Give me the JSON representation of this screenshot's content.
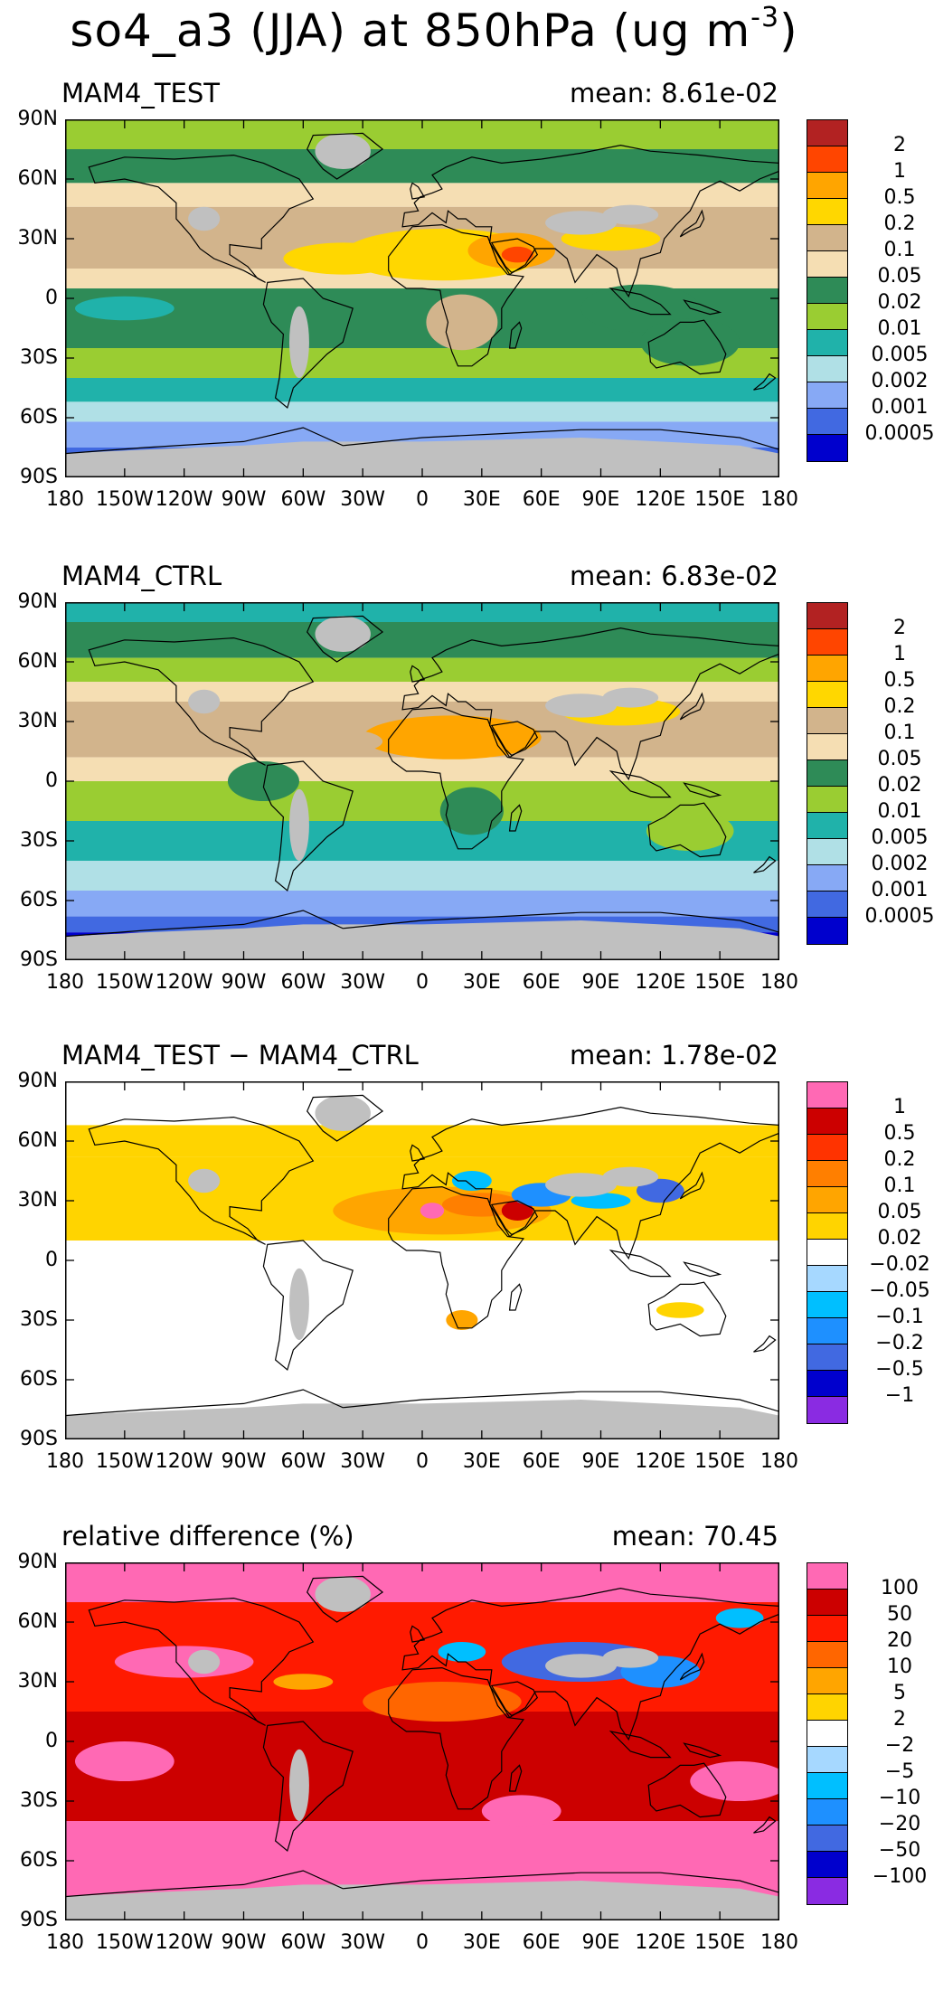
{
  "title": {
    "text": "so4_a3 (JJA) at 850hPa (ug m",
    "sup": "-3",
    "close": ")"
  },
  "colors": {
    "land_gray": "#c0c0c0",
    "coast": "#000000"
  },
  "x_ticks": [
    "180",
    "150W",
    "120W",
    "90W",
    "60W",
    "30W",
    "0",
    "30E",
    "60E",
    "90E",
    "120E",
    "150E",
    "180"
  ],
  "y_ticks": [
    "90N",
    "60N",
    "30N",
    "0",
    "30S",
    "60S",
    "90S"
  ],
  "panels": [
    {
      "label": "MAM4_TEST",
      "mean": "mean: 8.61e-02",
      "palette": [
        "#b22222",
        "#ff4500",
        "#ffa500",
        "#ffd700",
        "#d2b48c",
        "#f5deb3",
        "#2e8b57",
        "#9acd32",
        "#20b2aa",
        "#b0e0e6",
        "#87a9f5",
        "#4169e1",
        "#0000cd"
      ],
      "levels": [
        "2",
        "1",
        "0.5",
        "0.2",
        "0.1",
        "0.05",
        "0.02",
        "0.01",
        "0.005",
        "0.002",
        "0.001",
        "0.0005"
      ],
      "bands": [
        {
          "lat_top": 90,
          "lat_bot": 75,
          "c": 7
        },
        {
          "lat_top": 75,
          "lat_bot": 58,
          "c": 6
        },
        {
          "lat_top": 58,
          "lat_bot": 46,
          "c": 5
        },
        {
          "lat_top": 46,
          "lat_bot": 15,
          "c": 4
        },
        {
          "lat_top": 15,
          "lat_bot": 5,
          "c": 5
        },
        {
          "lat_top": 5,
          "lat_bot": -25,
          "c": 6
        },
        {
          "lat_top": -25,
          "lat_bot": -40,
          "c": 7
        },
        {
          "lat_top": -40,
          "lat_bot": -52,
          "c": 8
        },
        {
          "lat_top": -52,
          "lat_bot": -62,
          "c": 9
        },
        {
          "lat_top": -62,
          "lat_bot": -75,
          "c": 10
        },
        {
          "lat_top": -75,
          "lat_bot": -90,
          "c": 11
        }
      ],
      "blobs": [
        {
          "lon": 10,
          "lat": 22,
          "rx": 50,
          "ry": 13,
          "c": 3
        },
        {
          "lon": 45,
          "lat": 24,
          "rx": 22,
          "ry": 9,
          "c": 2
        },
        {
          "lon": 48,
          "lat": 22,
          "rx": 8,
          "ry": 4,
          "c": 1
        },
        {
          "lon": -40,
          "lat": 20,
          "rx": 30,
          "ry": 8,
          "c": 3
        },
        {
          "lon": 95,
          "lat": 30,
          "rx": 25,
          "ry": 6,
          "c": 3
        },
        {
          "lon": 20,
          "lat": -12,
          "rx": 18,
          "ry": 14,
          "c": 4
        },
        {
          "lon": 110,
          "lat": -5,
          "rx": 30,
          "ry": 12,
          "c": 6
        },
        {
          "lon": 135,
          "lat": -22,
          "rx": 25,
          "ry": 12,
          "c": 6
        },
        {
          "lon": -150,
          "lat": -5,
          "rx": 25,
          "ry": 6,
          "c": 8
        }
      ]
    },
    {
      "label": "MAM4_CTRL",
      "mean": "mean: 6.83e-02",
      "palette": [
        "#b22222",
        "#ff4500",
        "#ffa500",
        "#ffd700",
        "#d2b48c",
        "#f5deb3",
        "#2e8b57",
        "#9acd32",
        "#20b2aa",
        "#b0e0e6",
        "#87a9f5",
        "#4169e1",
        "#0000cd"
      ],
      "levels": [
        "2",
        "1",
        "0.5",
        "0.2",
        "0.1",
        "0.05",
        "0.02",
        "0.01",
        "0.005",
        "0.002",
        "0.001",
        "0.0005"
      ],
      "bands": [
        {
          "lat_top": 90,
          "lat_bot": 80,
          "c": 8
        },
        {
          "lat_top": 80,
          "lat_bot": 62,
          "c": 6
        },
        {
          "lat_top": 62,
          "lat_bot": 50,
          "c": 7
        },
        {
          "lat_top": 50,
          "lat_bot": 40,
          "c": 5
        },
        {
          "lat_top": 40,
          "lat_bot": 12,
          "c": 4
        },
        {
          "lat_top": 12,
          "lat_bot": 0,
          "c": 5
        },
        {
          "lat_top": 0,
          "lat_bot": -20,
          "c": 7
        },
        {
          "lat_top": -20,
          "lat_bot": -40,
          "c": 8
        },
        {
          "lat_top": -40,
          "lat_bot": -55,
          "c": 9
        },
        {
          "lat_top": -55,
          "lat_bot": -68,
          "c": 10
        },
        {
          "lat_top": -68,
          "lat_bot": -76,
          "c": 11
        },
        {
          "lat_top": -76,
          "lat_bot": -90,
          "c": 12
        }
      ],
      "blobs": [
        {
          "lon": 15,
          "lat": 22,
          "rx": 45,
          "ry": 11,
          "c": 2
        },
        {
          "lon": 100,
          "lat": 35,
          "rx": 30,
          "ry": 7,
          "c": 3
        },
        {
          "lon": -40,
          "lat": 20,
          "rx": 20,
          "ry": 6,
          "c": 4
        },
        {
          "lon": 25,
          "lat": -15,
          "rx": 16,
          "ry": 12,
          "c": 6
        },
        {
          "lon": 135,
          "lat": -25,
          "rx": 22,
          "ry": 10,
          "c": 7
        },
        {
          "lon": -80,
          "lat": 0,
          "rx": 18,
          "ry": 10,
          "c": 6
        }
      ]
    },
    {
      "label": "MAM4_TEST − MAM4_CTRL",
      "mean": "mean: 1.78e-02",
      "palette": [
        "#ff69b4",
        "#cc0000",
        "#ff3300",
        "#ff7f00",
        "#ffa500",
        "#ffd400",
        "#ffffff",
        "#a6d8ff",
        "#00bfff",
        "#1e90ff",
        "#4169e1",
        "#0000cd",
        "#8a2be2"
      ],
      "levels": [
        "1",
        "0.5",
        "0.2",
        "0.1",
        "0.05",
        "0.02",
        "−0.02",
        "−0.05",
        "−0.1",
        "−0.2",
        "−0.5",
        "−1"
      ],
      "bands": [
        {
          "lat_top": 90,
          "lat_bot": -90,
          "c": 6
        },
        {
          "lat_top": 68,
          "lat_bot": 52,
          "c": 5
        },
        {
          "lat_top": 52,
          "lat_bot": 10,
          "c": 5
        }
      ],
      "blobs": [
        {
          "lon": 10,
          "lat": 25,
          "rx": 55,
          "ry": 12,
          "c": 4
        },
        {
          "lon": 30,
          "lat": 28,
          "rx": 20,
          "ry": 6,
          "c": 3
        },
        {
          "lon": 48,
          "lat": 25,
          "rx": 8,
          "ry": 5,
          "c": 1
        },
        {
          "lon": 5,
          "lat": 25,
          "rx": 6,
          "ry": 4,
          "c": 0
        },
        {
          "lon": 60,
          "lat": 33,
          "rx": 15,
          "ry": 6,
          "c": 9
        },
        {
          "lon": 90,
          "lat": 30,
          "rx": 15,
          "ry": 4,
          "c": 8
        },
        {
          "lon": 120,
          "lat": 35,
          "rx": 12,
          "ry": 6,
          "c": 10
        },
        {
          "lon": 25,
          "lat": 40,
          "rx": 10,
          "ry": 5,
          "c": 8
        },
        {
          "lon": 20,
          "lat": -30,
          "rx": 8,
          "ry": 5,
          "c": 4
        },
        {
          "lon": 130,
          "lat": -25,
          "rx": 12,
          "ry": 4,
          "c": 5
        }
      ]
    },
    {
      "label": "relative difference (%)",
      "mean": "mean: 70.45",
      "palette": [
        "#ff69b4",
        "#cc0000",
        "#ff1a00",
        "#ff6600",
        "#ffa500",
        "#ffd400",
        "#ffffff",
        "#a6d8ff",
        "#00bfff",
        "#1e90ff",
        "#4169e1",
        "#0000cd",
        "#8a2be2"
      ],
      "levels": [
        "100",
        "50",
        "20",
        "10",
        "5",
        "2",
        "−2",
        "−5",
        "−10",
        "−20",
        "−50",
        "−100"
      ],
      "bands": [
        {
          "lat_top": 90,
          "lat_bot": 70,
          "c": 0
        },
        {
          "lat_top": 70,
          "lat_bot": 15,
          "c": 2
        },
        {
          "lat_top": 15,
          "lat_bot": -40,
          "c": 1
        },
        {
          "lat_top": -40,
          "lat_bot": -90,
          "c": 0
        }
      ],
      "blobs": [
        {
          "lon": -120,
          "lat": 40,
          "rx": 35,
          "ry": 8,
          "c": 0
        },
        {
          "lon": -150,
          "lat": -10,
          "rx": 25,
          "ry": 10,
          "c": 0
        },
        {
          "lon": 160,
          "lat": -20,
          "rx": 25,
          "ry": 10,
          "c": 0
        },
        {
          "lon": 50,
          "lat": -35,
          "rx": 20,
          "ry": 8,
          "c": 0
        },
        {
          "lon": 80,
          "lat": 40,
          "rx": 40,
          "ry": 10,
          "c": 10
        },
        {
          "lon": 120,
          "lat": 35,
          "rx": 20,
          "ry": 8,
          "c": 9
        },
        {
          "lon": 20,
          "lat": 45,
          "rx": 12,
          "ry": 5,
          "c": 8
        },
        {
          "lon": 160,
          "lat": 62,
          "rx": 12,
          "ry": 5,
          "c": 8
        },
        {
          "lon": 10,
          "lat": 20,
          "rx": 40,
          "ry": 10,
          "c": 3
        },
        {
          "lon": -60,
          "lat": 30,
          "rx": 15,
          "ry": 4,
          "c": 4
        }
      ]
    }
  ]
}
